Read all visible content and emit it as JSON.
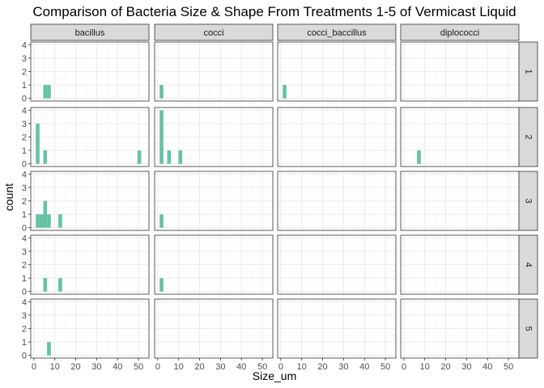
{
  "chart_data": {
    "type": "histogram",
    "title": "Comparison of Bacteria Size & Shape From Treatments 1-5 of Vermicast Liquid",
    "xlabel": "Size_um",
    "ylabel": "count",
    "xlim": [
      -1.5,
      55
    ],
    "ylim": [
      -0.2,
      4.2
    ],
    "x_ticks": [
      0,
      10,
      20,
      30,
      40,
      50
    ],
    "y_ticks": [
      0,
      1,
      2,
      3,
      4
    ],
    "bin_width": 1.8,
    "columns": [
      "bacillus",
      "cocci",
      "cocci_baccillus",
      "diplococci"
    ],
    "rows": [
      "1",
      "2",
      "3",
      "4",
      "5"
    ],
    "fill_color": "#66c2a5",
    "grid": true,
    "bins": [
      {
        "row": "1",
        "column": "bacillus",
        "x": 5.4,
        "count": 1
      },
      {
        "row": "1",
        "column": "bacillus",
        "x": 7.2,
        "count": 1
      },
      {
        "row": "1",
        "column": "cocci",
        "x": 1.8,
        "count": 1
      },
      {
        "row": "1",
        "column": "cocci_baccillus",
        "x": 1.8,
        "count": 1
      },
      {
        "row": "2",
        "column": "bacillus",
        "x": 1.8,
        "count": 3
      },
      {
        "row": "2",
        "column": "bacillus",
        "x": 5.4,
        "count": 1
      },
      {
        "row": "2",
        "column": "bacillus",
        "x": 50.4,
        "count": 1
      },
      {
        "row": "2",
        "column": "cocci",
        "x": 1.8,
        "count": 4
      },
      {
        "row": "2",
        "column": "cocci",
        "x": 5.4,
        "count": 1
      },
      {
        "row": "2",
        "column": "cocci",
        "x": 10.8,
        "count": 1
      },
      {
        "row": "2",
        "column": "diplococci",
        "x": 7.2,
        "count": 1
      },
      {
        "row": "3",
        "column": "bacillus",
        "x": 1.8,
        "count": 1
      },
      {
        "row": "3",
        "column": "bacillus",
        "x": 3.6,
        "count": 1
      },
      {
        "row": "3",
        "column": "bacillus",
        "x": 5.4,
        "count": 2
      },
      {
        "row": "3",
        "column": "bacillus",
        "x": 7.2,
        "count": 1
      },
      {
        "row": "3",
        "column": "bacillus",
        "x": 12.6,
        "count": 1
      },
      {
        "row": "3",
        "column": "cocci",
        "x": 1.8,
        "count": 1
      },
      {
        "row": "4",
        "column": "bacillus",
        "x": 5.4,
        "count": 1
      },
      {
        "row": "4",
        "column": "bacillus",
        "x": 12.6,
        "count": 1
      },
      {
        "row": "4",
        "column": "cocci",
        "x": 1.8,
        "count": 1
      },
      {
        "row": "5",
        "column": "bacillus",
        "x": 7.2,
        "count": 1
      }
    ]
  }
}
